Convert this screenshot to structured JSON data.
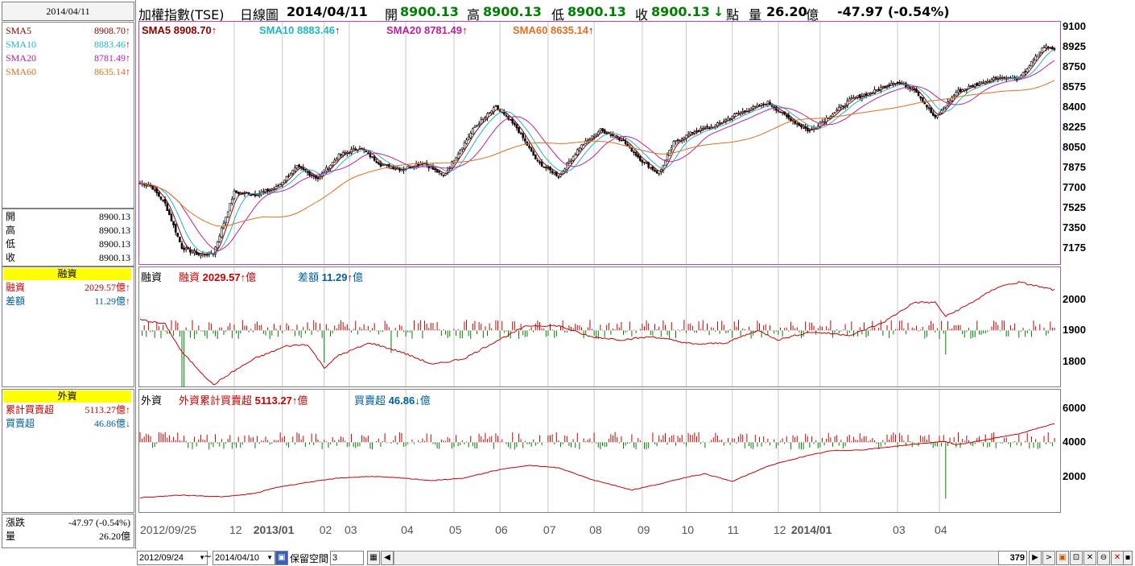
{
  "header": {
    "date_box": "2014/04/11",
    "title": "加權指數(TSE)",
    "period": "日線圖",
    "date": "2014/04/11",
    "open_label": "開",
    "open": "8900.13",
    "high_label": "高",
    "high": "8900.13",
    "low_label": "低",
    "low": "8900.13",
    "close_label": "收",
    "close": "8900.13",
    "close_arrow": "↓",
    "unit": "點",
    "vol_label": "量",
    "vol": "26.20",
    "vol_unit": "億",
    "change": "-47.97 (-0.54%)"
  },
  "sidebar": {
    "sma": [
      {
        "label": "SMA5",
        "value": "8908.70",
        "arrow": "↑",
        "color": "#8b0000"
      },
      {
        "label": "SMA10",
        "value": "8883.46",
        "arrow": "↑",
        "color": "#20b8c8"
      },
      {
        "label": "SMA20",
        "value": "8781.49",
        "arrow": "↑",
        "color": "#c020a0"
      },
      {
        "label": "SMA60",
        "value": "8635.14",
        "arrow": "↑",
        "color": "#e07020"
      }
    ],
    "ohlc": [
      {
        "label": "開",
        "value": "8900.13"
      },
      {
        "label": "高",
        "value": "8900.13"
      },
      {
        "label": "低",
        "value": "8900.13"
      },
      {
        "label": "收",
        "value": "8900.13"
      }
    ],
    "margin_title": "融資",
    "margin": [
      {
        "label": "融資",
        "value": "2029.57億",
        "arrow": "↑",
        "color": "#cc0000"
      },
      {
        "label": "差額",
        "value": "11.29億",
        "arrow": "↑",
        "color": "#0060a0"
      }
    ],
    "foreign_title": "外資",
    "foreign": [
      {
        "label": "累計買賣超",
        "value": "5113.27億",
        "arrow": "↑",
        "color": "#cc0000"
      },
      {
        "label": "買賣超",
        "value": "46.86億",
        "arrow": "↓",
        "color": "#0060a0"
      }
    ],
    "bottom": [
      {
        "label": "漲跌",
        "value": "-47.97 (-0.54%)"
      },
      {
        "label": "量",
        "value": "26.20億"
      }
    ]
  },
  "legends": {
    "main": [
      {
        "text": "SMA5 8908.70",
        "arrow": "↑",
        "color": "#8b0000"
      },
      {
        "text": "SMA10 8883.46",
        "arrow": "↑",
        "color": "#20b8c8"
      },
      {
        "text": "SMA20 8781.49",
        "arrow": "↑",
        "color": "#c020a0"
      },
      {
        "text": "SMA60 8635.14",
        "arrow": "↑",
        "color": "#e07020"
      }
    ],
    "margin_title": "融資",
    "margin": [
      {
        "name": "融資",
        "value": "2029.57",
        "unit": "億",
        "arrow": "↑",
        "color": "#cc0000"
      },
      {
        "name": "差額",
        "value": "11.29",
        "unit": "億",
        "arrow": "↑",
        "color": "#0060a0"
      }
    ],
    "foreign_title": "外資",
    "foreign": [
      {
        "name": "外資累計買賣超",
        "value": "5113.27",
        "unit": "億",
        "arrow": "↑",
        "color": "#cc0000"
      },
      {
        "name": "買賣超",
        "value": "46.86",
        "unit": "億",
        "arrow": "↓",
        "color": "#0060a0"
      }
    ]
  },
  "toolbar": {
    "start_date": "2012/09/24",
    "tilde": "~",
    "end_date": "2014/04/10",
    "reserve_label": "保留空間",
    "reserve_value": "3",
    "count": "379"
  },
  "chart_data": [
    {
      "type": "candlestick",
      "yticks": [
        9100,
        8925,
        8750,
        8575,
        8400,
        8225,
        8050,
        7875,
        7700,
        7525,
        7350,
        7175
      ],
      "ylim": [
        7050,
        9120
      ],
      "x_tick_labels": [
        "2012/09/25",
        "12",
        "2013/01",
        "02",
        "03",
        "04",
        "05",
        "06",
        "07",
        "08",
        "09",
        "10",
        "11",
        "12",
        "2014/01",
        "03",
        "04"
      ],
      "series": [
        {
          "name": "SMA5",
          "last": 8908.7
        },
        {
          "name": "SMA10",
          "last": 8883.46
        },
        {
          "name": "SMA20",
          "last": 8781.49
        },
        {
          "name": "SMA60",
          "last": 8635.14
        }
      ],
      "close_anchors": [
        [
          0,
          7740
        ],
        [
          5,
          7720
        ],
        [
          12,
          7560
        ],
        [
          20,
          7180
        ],
        [
          28,
          7120
        ],
        [
          35,
          7130
        ],
        [
          45,
          7660
        ],
        [
          55,
          7640
        ],
        [
          65,
          7700
        ],
        [
          75,
          7880
        ],
        [
          85,
          7780
        ],
        [
          95,
          7980
        ],
        [
          105,
          8050
        ],
        [
          115,
          7900
        ],
        [
          125,
          7860
        ],
        [
          135,
          7920
        ],
        [
          145,
          7800
        ],
        [
          160,
          8230
        ],
        [
          170,
          8400
        ],
        [
          180,
          8220
        ],
        [
          190,
          7920
        ],
        [
          200,
          7800
        ],
        [
          210,
          8050
        ],
        [
          220,
          8200
        ],
        [
          230,
          8120
        ],
        [
          240,
          7930
        ],
        [
          248,
          7820
        ],
        [
          255,
          8090
        ],
        [
          265,
          8190
        ],
        [
          275,
          8240
        ],
        [
          285,
          8340
        ],
        [
          300,
          8440
        ],
        [
          310,
          8300
        ],
        [
          320,
          8190
        ],
        [
          330,
          8330
        ],
        [
          340,
          8470
        ],
        [
          350,
          8530
        ],
        [
          360,
          8620
        ],
        [
          370,
          8560
        ],
        [
          380,
          8300
        ],
        [
          390,
          8530
        ],
        [
          400,
          8600
        ],
        [
          410,
          8660
        ],
        [
          420,
          8640
        ],
        [
          425,
          8760
        ],
        [
          432,
          8930
        ],
        [
          437,
          8900
        ]
      ]
    },
    {
      "type": "bar+line",
      "name": "融資",
      "yticks": [
        2000,
        1900,
        1800
      ],
      "ylim": [
        1725,
        2090
      ],
      "line_last": 2029.57,
      "bar_last": 11.29,
      "line_anchors": [
        [
          0,
          1935
        ],
        [
          12,
          1920
        ],
        [
          20,
          1830
        ],
        [
          35,
          1725
        ],
        [
          45,
          1770
        ],
        [
          55,
          1810
        ],
        [
          70,
          1850
        ],
        [
          80,
          1855
        ],
        [
          88,
          1780
        ],
        [
          95,
          1820
        ],
        [
          110,
          1860
        ],
        [
          125,
          1830
        ],
        [
          140,
          1790
        ],
        [
          155,
          1810
        ],
        [
          170,
          1865
        ],
        [
          185,
          1915
        ],
        [
          200,
          1915
        ],
        [
          215,
          1880
        ],
        [
          230,
          1870
        ],
        [
          245,
          1880
        ],
        [
          265,
          1855
        ],
        [
          280,
          1860
        ],
        [
          295,
          1900
        ],
        [
          305,
          1870
        ],
        [
          320,
          1895
        ],
        [
          340,
          1885
        ],
        [
          355,
          1925
        ],
        [
          370,
          1990
        ],
        [
          380,
          1990
        ],
        [
          385,
          1945
        ],
        [
          395,
          1980
        ],
        [
          410,
          2040
        ],
        [
          420,
          2055
        ],
        [
          437,
          2030
        ]
      ]
    },
    {
      "type": "bar+line",
      "name": "外資",
      "yticks": [
        6000,
        4000,
        2000
      ],
      "ylim": [
        0,
        6800
      ],
      "line_last": 5113.27,
      "bar_last": 46.86,
      "line_anchors": [
        [
          0,
          750
        ],
        [
          20,
          900
        ],
        [
          40,
          800
        ],
        [
          55,
          1000
        ],
        [
          65,
          1350
        ],
        [
          80,
          1650
        ],
        [
          95,
          1900
        ],
        [
          110,
          2000
        ],
        [
          125,
          1900
        ],
        [
          140,
          1750
        ],
        [
          155,
          1900
        ],
        [
          170,
          2350
        ],
        [
          185,
          2650
        ],
        [
          200,
          2500
        ],
        [
          215,
          1850
        ],
        [
          235,
          1200
        ],
        [
          250,
          1600
        ],
        [
          262,
          1980
        ],
        [
          270,
          2150
        ],
        [
          283,
          1700
        ],
        [
          300,
          2600
        ],
        [
          315,
          3100
        ],
        [
          330,
          3500
        ],
        [
          345,
          3550
        ],
        [
          360,
          3750
        ],
        [
          375,
          3950
        ],
        [
          385,
          4050
        ],
        [
          390,
          3850
        ],
        [
          400,
          4050
        ],
        [
          420,
          4500
        ],
        [
          437,
          5100
        ]
      ]
    }
  ]
}
